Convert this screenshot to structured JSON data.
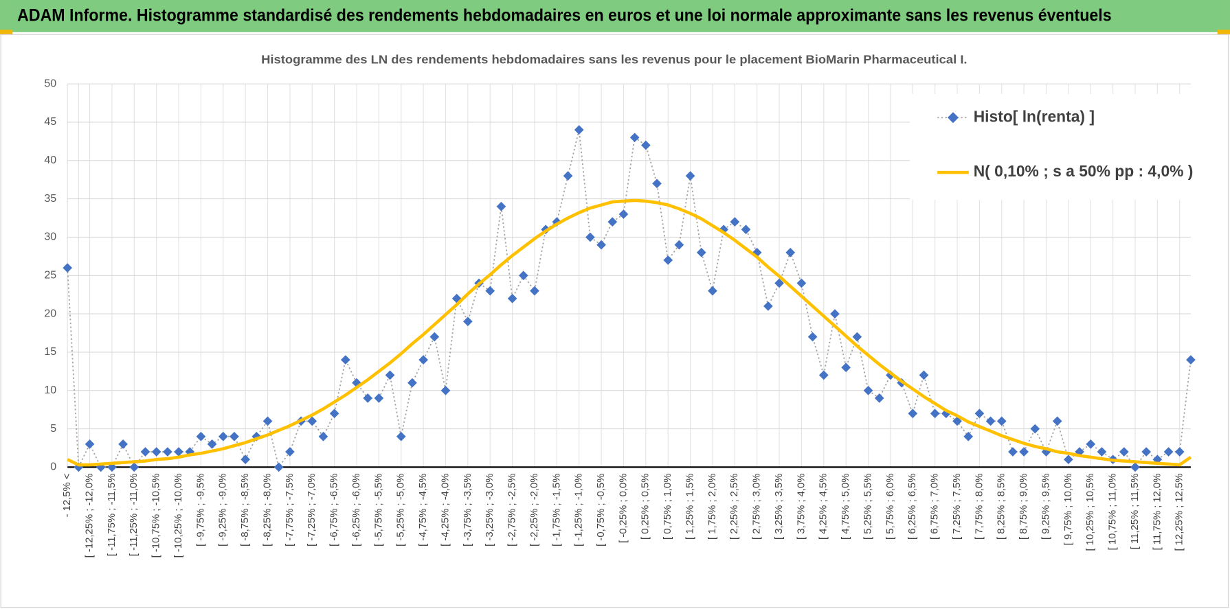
{
  "header": {
    "title": "ADAM Informe. Histogramme standardisé des rendements hebdomadaires en euros et une loi normale approximante sans les revenus éventuels"
  },
  "chart_data": {
    "type": "line",
    "title": "Histogramme des LN des rendements hebdomadaires sans les revenus pour le placement BioMarin  Pharmaceutical I.",
    "categories": [
      "- 12,5% <",
      null,
      "[ -12,25% ; -12,0%",
      null,
      "[ -11,75% ; -11,5%",
      null,
      "[ -11,25% ; -11,0%",
      null,
      "[ -10,75% ; -10,5%",
      null,
      "[ -10,25% ; -10,0%",
      null,
      "[ -9,75% ; -9,5%",
      null,
      "[ -9,25% ; -9,0%",
      null,
      "[ -8,75% ; -8,5%",
      null,
      "[ -8,25% ; -8,0%",
      null,
      "[ -7,75% ; -7,5%",
      null,
      "[ -7,25% ; -7,0%",
      null,
      "[ -6,75% ; -6,5%",
      null,
      "[ -6,25% ; -6,0%",
      null,
      "[ -5,75% ; -5,5%",
      null,
      "[ -5,25% ; -5,0%",
      null,
      "[ -4,75% ; -4,5%",
      null,
      "[ -4,25% ; -4,0%",
      null,
      "[ -3,75% ; -3,5%",
      null,
      "[ -3,25% ; -3,0%",
      null,
      "[ -2,75% ; -2,5%",
      null,
      "[ -2,25% ; -2,0%",
      null,
      "[ -1,75% ; -1,5%",
      null,
      "[ -1,25% ; -1,0%",
      null,
      "[ -0,75% ; -0,5%",
      null,
      "[ -0,25% ; 0,0%",
      null,
      "[ 0,25% ; 0,5%",
      null,
      "[ 0,75% ; 1,0%",
      null,
      "[ 1,25% ; 1,5%",
      null,
      "[ 1,75% ; 2,0%",
      null,
      "[ 2,25% ; 2,5%",
      null,
      "[ 2,75% ; 3,0%",
      null,
      "[ 3,25% ; 3,5%",
      null,
      "[ 3,75% ; 4,0%",
      null,
      "[ 4,25% ; 4,5%",
      null,
      "[ 4,75% ; 5,0%",
      null,
      "[ 5,25% ; 5,5%",
      null,
      "[ 5,75% ; 6,0%",
      null,
      "[ 6,25% ; 6,5%",
      null,
      "[ 6,75% ; 7,0%",
      null,
      "[ 7,25% ; 7,5%",
      null,
      "[ 7,75% ; 8,0%",
      null,
      "[ 8,25% ; 8,5%",
      null,
      "[ 8,75% ; 9,0%",
      null,
      "[ 9,25% ; 9,5%",
      null,
      "[ 9,75% ; 10,0%",
      null,
      "[ 10,25% ; 10,5%",
      null,
      "[ 10,75% ; 11,0%",
      null,
      "[ 11,25% ; 11,5%",
      null,
      "[ 11,75% ; 12,0%",
      null,
      "[ 12,25% ; 12,5%",
      null
    ],
    "series": [
      {
        "name": "Histo[ ln(renta) ]",
        "color": "#4472c4",
        "line_color": "#a5a5a5",
        "marker": "diamond",
        "values": [
          26,
          0,
          3,
          0,
          0,
          3,
          0,
          2,
          2,
          2,
          2,
          2,
          4,
          3,
          4,
          4,
          1,
          4,
          6,
          0,
          2,
          6,
          6,
          4,
          7,
          14,
          11,
          9,
          9,
          12,
          4,
          11,
          14,
          17,
          10,
          22,
          19,
          24,
          23,
          34,
          22,
          25,
          23,
          31,
          32,
          38,
          44,
          30,
          29,
          32,
          33,
          43,
          42,
          37,
          27,
          29,
          38,
          28,
          23,
          31,
          32,
          31,
          28,
          21,
          24,
          28,
          24,
          17,
          12,
          20,
          13,
          17,
          10,
          9,
          12,
          11,
          7,
          12,
          7,
          7,
          6,
          4,
          7,
          6,
          6,
          2,
          2,
          5,
          2,
          6,
          1,
          2,
          3,
          2,
          1,
          2,
          0,
          2,
          1,
          2,
          2,
          14
        ]
      },
      {
        "name": "N( 0,10% ; s a 50% pp : 4,0% )",
        "color": "#ffc000",
        "values": [
          1.0,
          0.3,
          0.3,
          0.4,
          0.5,
          0.6,
          0.7,
          0.8,
          1.0,
          1.1,
          1.3,
          1.6,
          1.8,
          2.1,
          2.4,
          2.8,
          3.2,
          3.7,
          4.2,
          4.8,
          5.4,
          6.1,
          6.8,
          7.6,
          8.5,
          9.4,
          10.4,
          11.4,
          12.5,
          13.6,
          14.8,
          16.1,
          17.3,
          18.6,
          19.9,
          21.2,
          22.6,
          23.9,
          25.1,
          26.4,
          27.6,
          28.7,
          29.8,
          30.8,
          31.7,
          32.5,
          33.2,
          33.8,
          34.2,
          34.6,
          34.7,
          34.8,
          34.7,
          34.5,
          34.2,
          33.7,
          33.1,
          32.4,
          31.5,
          30.6,
          29.6,
          28.5,
          27.4,
          26.1,
          24.9,
          23.6,
          22.3,
          21.0,
          19.7,
          18.4,
          17.1,
          15.8,
          14.6,
          13.4,
          12.3,
          11.2,
          10.2,
          9.2,
          8.3,
          7.4,
          6.7,
          5.9,
          5.3,
          4.7,
          4.1,
          3.6,
          3.1,
          2.7,
          2.4,
          2.0,
          1.8,
          1.5,
          1.3,
          1.1,
          0.9,
          0.8,
          0.7,
          0.6,
          0.5,
          0.4,
          0.3,
          1.3
        ]
      }
    ],
    "ylim": [
      0,
      50
    ],
    "yticks": [
      0,
      5,
      10,
      15,
      20,
      25,
      30,
      35,
      40,
      45,
      50
    ],
    "grid": true,
    "legend": "top-right"
  }
}
